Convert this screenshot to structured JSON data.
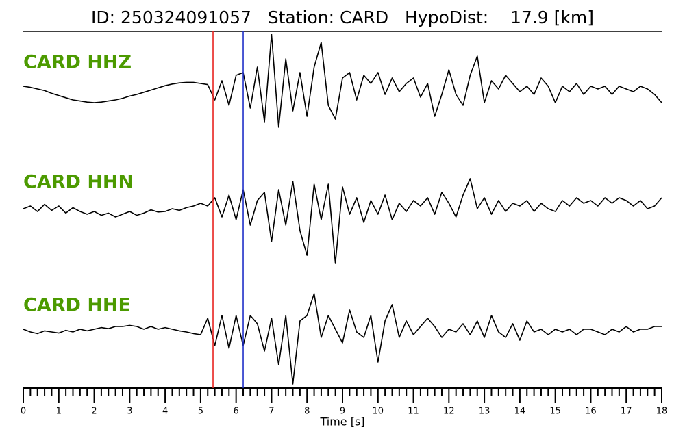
{
  "chart_data": {
    "type": "line",
    "title": "ID: 250324091057   Station: CARD   HypoDist:    17.9 [km]",
    "xlabel": "Time [s]",
    "xlim": [
      0,
      18
    ],
    "xticks": [
      0,
      1,
      2,
      3,
      4,
      5,
      6,
      7,
      8,
      9,
      10,
      11,
      12,
      13,
      14,
      15,
      16,
      17,
      18
    ],
    "xminorticks": [
      0.2,
      0.4,
      0.6,
      0.8,
      1.2,
      1.4,
      1.6,
      1.8,
      2.2,
      2.4,
      2.6,
      2.8,
      3.2,
      3.4,
      3.6,
      3.8,
      4.2,
      4.4,
      4.6,
      4.8,
      5.2,
      5.4,
      5.6,
      5.8,
      6.2,
      6.4,
      6.6,
      6.8,
      7.2,
      7.4,
      7.6,
      7.8,
      8.2,
      8.4,
      8.6,
      8.8,
      9.2,
      9.4,
      9.6,
      9.8,
      10.2,
      10.4,
      10.6,
      10.8,
      11.2,
      11.4,
      11.6,
      11.8,
      12.2,
      12.4,
      12.6,
      12.8,
      13.2,
      13.4,
      13.6,
      13.8,
      14.2,
      14.4,
      14.6,
      14.8,
      15.2,
      15.4,
      15.6,
      15.8,
      16.2,
      16.4,
      16.6,
      16.8,
      17.2,
      17.4,
      17.6,
      17.8
    ],
    "ylim": [
      -1,
      1
    ],
    "label_color": "#4c9a00",
    "vlines": [
      {
        "x": 5.35,
        "color": "#e8231f"
      },
      {
        "x": 6.2,
        "color": "#1f2fc8"
      }
    ],
    "x": [
      0,
      0.2,
      0.4,
      0.6,
      0.8,
      1,
      1.2,
      1.4,
      1.6,
      1.8,
      2,
      2.2,
      2.4,
      2.6,
      2.8,
      3,
      3.2,
      3.4,
      3.6,
      3.8,
      4,
      4.2,
      4.4,
      4.6,
      4.8,
      5,
      5.2,
      5.4,
      5.6,
      5.8,
      6,
      6.2,
      6.4,
      6.6,
      6.8,
      7,
      7.2,
      7.4,
      7.6,
      7.8,
      8,
      8.2,
      8.4,
      8.6,
      8.8,
      9,
      9.2,
      9.4,
      9.6,
      9.8,
      10,
      10.2,
      10.4,
      10.6,
      10.8,
      11,
      11.2,
      11.4,
      11.6,
      11.8,
      12,
      12.2,
      12.4,
      12.6,
      12.8,
      13,
      13.2,
      13.4,
      13.6,
      13.8,
      14,
      14.2,
      14.4,
      14.6,
      14.8,
      15,
      15.2,
      15.4,
      15.6,
      15.8,
      16,
      16.2,
      16.4,
      16.6,
      16.8,
      17,
      17.2,
      17.4,
      17.6,
      17.8,
      18
    ],
    "series": [
      {
        "name": "CARD HHZ",
        "color": "#000000",
        "values": [
          0.05,
          0.03,
          0,
          -0.03,
          -0.08,
          -0.12,
          -0.16,
          -0.2,
          -0.22,
          -0.24,
          -0.25,
          -0.24,
          -0.22,
          -0.2,
          -0.17,
          -0.13,
          -0.1,
          -0.06,
          -0.02,
          0.02,
          0.06,
          0.09,
          0.11,
          0.12,
          0.12,
          0.1,
          0.08,
          -0.2,
          0.15,
          -0.3,
          0.25,
          0.3,
          -0.35,
          0.4,
          -0.6,
          1.0,
          -0.7,
          0.55,
          -0.4,
          0.3,
          -0.5,
          0.4,
          0.85,
          -0.3,
          -0.55,
          0.2,
          0.3,
          -0.2,
          0.25,
          0.1,
          0.3,
          -0.1,
          0.2,
          -0.05,
          0.1,
          0.2,
          -0.15,
          0.1,
          -0.5,
          -0.1,
          0.35,
          -0.1,
          -0.3,
          0.25,
          0.6,
          -0.25,
          0.15,
          0,
          0.25,
          0.1,
          -0.05,
          0.05,
          -0.1,
          0.2,
          0.05,
          -0.25,
          0.05,
          -0.05,
          0.1,
          -0.1,
          0.05,
          0,
          0.05,
          -0.1,
          0.05,
          0,
          -0.05,
          0.05,
          0,
          -0.1,
          -0.25
        ]
      },
      {
        "name": "CARD HHN",
        "color": "#000000",
        "values": [
          0,
          0.05,
          -0.05,
          0.08,
          -0.03,
          0.05,
          -0.08,
          0.02,
          -0.05,
          -0.1,
          -0.05,
          -0.12,
          -0.08,
          -0.15,
          -0.1,
          -0.05,
          -0.12,
          -0.08,
          -0.02,
          -0.06,
          -0.05,
          0,
          -0.03,
          0.02,
          0.05,
          0.1,
          0.05,
          0.2,
          -0.15,
          0.25,
          -0.2,
          0.35,
          -0.3,
          0.15,
          0.3,
          -0.6,
          0.35,
          -0.3,
          0.5,
          -0.4,
          -0.85,
          0.45,
          -0.2,
          0.45,
          -1.0,
          0.4,
          -0.1,
          0.2,
          -0.25,
          0.15,
          -0.1,
          0.25,
          -0.2,
          0.1,
          -0.05,
          0.15,
          0.05,
          0.2,
          -0.1,
          0.3,
          0.1,
          -0.15,
          0.25,
          0.55,
          0,
          0.2,
          -0.1,
          0.15,
          -0.05,
          0.1,
          0.05,
          0.15,
          -0.05,
          0.1,
          0,
          -0.05,
          0.15,
          0.05,
          0.2,
          0.1,
          0.15,
          0.05,
          0.2,
          0.1,
          0.2,
          0.15,
          0.05,
          0.15,
          0,
          0.05,
          0.2
        ]
      },
      {
        "name": "CARD HHE",
        "color": "#000000",
        "values": [
          0.05,
          0,
          -0.03,
          0.02,
          0,
          -0.02,
          0.03,
          0,
          0.05,
          0.02,
          0.05,
          0.08,
          0.06,
          0.1,
          0.1,
          0.12,
          0.1,
          0.05,
          0.1,
          0.05,
          0.08,
          0.05,
          0.02,
          0,
          -0.03,
          -0.05,
          0.25,
          -0.25,
          0.3,
          -0.3,
          0.3,
          -0.25,
          0.3,
          0.15,
          -0.35,
          0.25,
          -0.6,
          0.3,
          -0.95,
          0.2,
          0.3,
          0.7,
          -0.1,
          0.3,
          0.05,
          -0.2,
          0.4,
          0,
          -0.1,
          0.3,
          -0.55,
          0.2,
          0.5,
          -0.1,
          0.2,
          -0.05,
          0.1,
          0.25,
          0.1,
          -0.1,
          0.05,
          0,
          0.15,
          -0.05,
          0.2,
          -0.1,
          0.3,
          0,
          -0.1,
          0.15,
          -0.15,
          0.2,
          0,
          0.05,
          -0.05,
          0.05,
          0,
          0.05,
          -0.05,
          0.05,
          0.05,
          0,
          -0.05,
          0.05,
          0,
          0.1,
          0,
          0.05,
          0.05,
          0.1,
          0.1
        ]
      }
    ]
  }
}
